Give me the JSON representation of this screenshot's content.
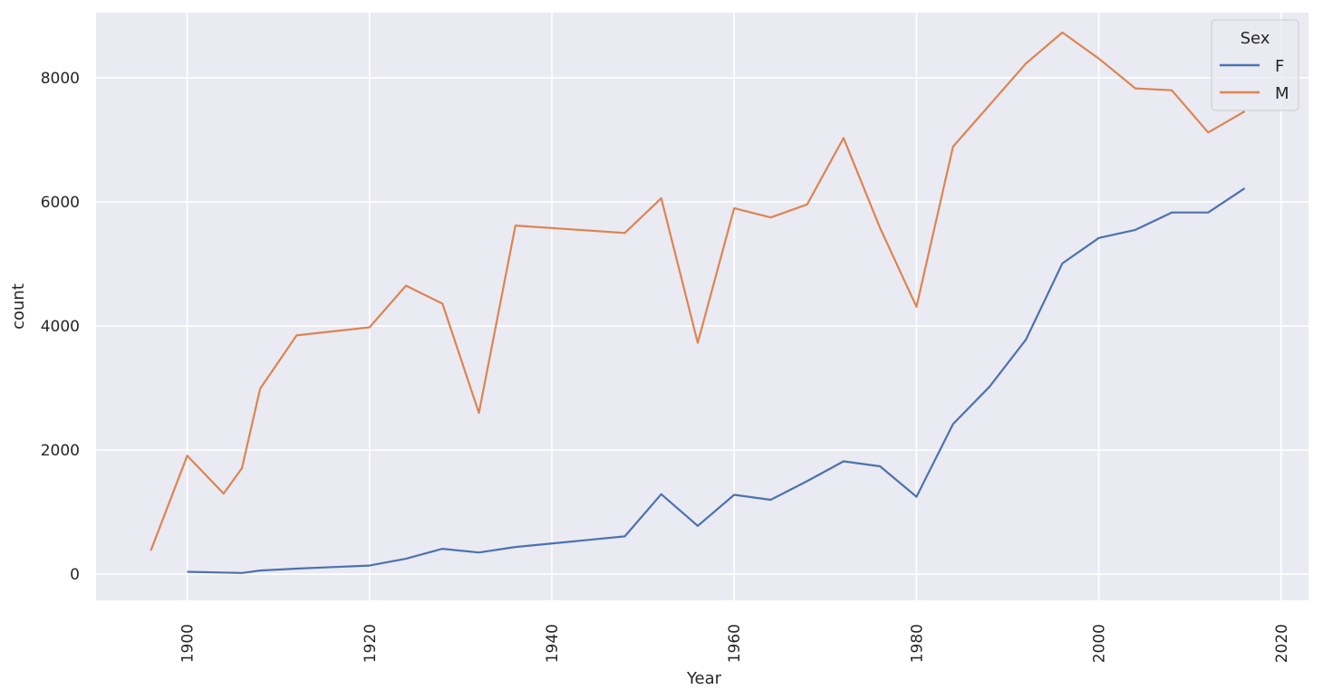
{
  "chart_data": {
    "type": "line",
    "xlabel": "Year",
    "ylabel": "count",
    "xlim": [
      1890,
      2023
    ],
    "ylim": [
      -420,
      9050
    ],
    "xticks": [
      "1900",
      "1920",
      "1940",
      "1960",
      "1980",
      "2000",
      "2020"
    ],
    "yticks": [
      "0",
      "2000",
      "4000",
      "6000",
      "8000"
    ],
    "grid": true,
    "legend": {
      "title": "Sex",
      "placement": "top-right"
    },
    "colors": {
      "background": "#eaeaf2",
      "grid": "#ffffff",
      "F": "#4c72b0",
      "M": "#dd8452"
    },
    "series": [
      {
        "name": "F",
        "x": [
          1900,
          1906,
          1908,
          1912,
          1920,
          1924,
          1928,
          1932,
          1936,
          1948,
          1952,
          1956,
          1960,
          1964,
          1968,
          1972,
          1976,
          1980,
          1984,
          1988,
          1992,
          1996,
          2000,
          2004,
          2008,
          2012,
          2016
        ],
        "y": [
          40,
          20,
          60,
          90,
          140,
          250,
          410,
          350,
          440,
          610,
          1290,
          780,
          1280,
          1200,
          1500,
          1820,
          1740,
          1250,
          2420,
          3020,
          3780,
          5010,
          5420,
          5550,
          5830,
          5830,
          6220
        ]
      },
      {
        "name": "M",
        "x": [
          1896,
          1900,
          1904,
          1906,
          1908,
          1912,
          1920,
          1924,
          1928,
          1932,
          1936,
          1948,
          1952,
          1956,
          1960,
          1964,
          1968,
          1972,
          1976,
          1980,
          1984,
          1988,
          1992,
          1996,
          2000,
          2004,
          2008,
          2012,
          2016
        ],
        "y": [
          380,
          1910,
          1300,
          1710,
          2990,
          3850,
          3980,
          4650,
          4360,
          2600,
          5620,
          5500,
          6060,
          3730,
          5900,
          5750,
          5960,
          7030,
          5580,
          4310,
          6890,
          7560,
          8230,
          8730,
          8310,
          7830,
          7800,
          7120,
          7460
        ]
      }
    ]
  }
}
